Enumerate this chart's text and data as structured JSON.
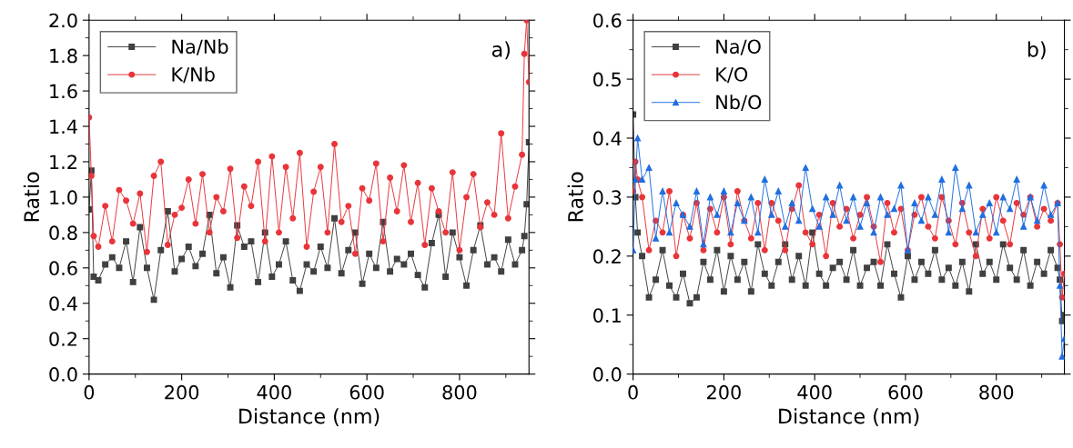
{
  "chart_data": [
    {
      "type": "line",
      "xlabel": "Distance (nm)",
      "ylabel": "Ratio",
      "annotations": [
        "a)"
      ],
      "legend": "top left",
      "grid": false,
      "line_style": "solid",
      "x": [
        0,
        5,
        10,
        20,
        35,
        50,
        65,
        80,
        95,
        110,
        125,
        140,
        155,
        170,
        185,
        200,
        215,
        230,
        245,
        260,
        275,
        290,
        305,
        320,
        335,
        350,
        365,
        380,
        395,
        410,
        425,
        440,
        455,
        470,
        485,
        500,
        515,
        530,
        545,
        560,
        575,
        590,
        605,
        620,
        635,
        650,
        665,
        680,
        695,
        710,
        725,
        740,
        755,
        770,
        785,
        800,
        815,
        830,
        845,
        860,
        875,
        890,
        905,
        920,
        935,
        940,
        945,
        950
      ],
      "xlim": [
        0,
        950
      ],
      "xticks": [
        0,
        200,
        400,
        600,
        800
      ],
      "ylim": [
        0.0,
        2.0
      ],
      "yticks": [
        {
          "value": 0,
          "label": "0.0"
        },
        0.2,
        0.4,
        0.6,
        0.8,
        {
          "value": 1,
          "label": "1.0"
        },
        1.2,
        1.4,
        1.6,
        1.8,
        {
          "value": 2,
          "label": "2.0"
        }
      ],
      "series": [
        {
          "name": "Na/Nb",
          "color": "#404040",
          "marker": "square",
          "values": [
            0.93,
            1.15,
            0.55,
            0.53,
            0.62,
            0.66,
            0.6,
            0.75,
            0.52,
            0.83,
            0.6,
            0.42,
            0.7,
            0.92,
            0.58,
            0.65,
            0.72,
            0.61,
            0.68,
            0.9,
            0.57,
            0.66,
            0.49,
            0.84,
            0.72,
            0.75,
            0.52,
            0.8,
            0.55,
            0.62,
            0.75,
            0.53,
            0.47,
            0.62,
            0.58,
            0.72,
            0.6,
            0.88,
            0.57,
            0.7,
            0.8,
            0.51,
            0.68,
            0.6,
            0.86,
            0.58,
            0.65,
            0.62,
            0.68,
            0.56,
            0.49,
            0.74,
            0.9,
            0.55,
            0.8,
            0.66,
            0.5,
            0.7,
            0.84,
            0.62,
            0.66,
            0.58,
            0.76,
            0.62,
            0.7,
            0.78,
            0.96,
            1.31
          ]
        },
        {
          "name": "K/Nb",
          "color": "#e8353a",
          "marker": "circle",
          "values": [
            1.45,
            1.12,
            0.78,
            0.72,
            0.95,
            0.75,
            1.04,
            0.98,
            0.85,
            1.02,
            0.69,
            1.12,
            1.2,
            0.73,
            0.9,
            0.94,
            1.1,
            0.85,
            1.13,
            0.8,
            1.0,
            0.92,
            1.16,
            0.77,
            1.06,
            0.95,
            1.2,
            0.75,
            1.23,
            0.8,
            1.17,
            0.88,
            1.25,
            0.72,
            1.03,
            1.17,
            0.8,
            1.3,
            0.86,
            0.95,
            0.68,
            1.05,
            0.98,
            1.19,
            0.75,
            1.11,
            0.92,
            1.18,
            0.86,
            1.08,
            0.73,
            1.05,
            0.92,
            0.8,
            1.14,
            0.7,
            1.0,
            1.13,
            0.83,
            0.97,
            0.9,
            1.36,
            0.88,
            1.06,
            1.24,
            1.81,
            2.0,
            1.65
          ]
        }
      ]
    },
    {
      "type": "line",
      "xlabel": "Distance (nm)",
      "ylabel": "Ratio",
      "annotations": [
        "b)"
      ],
      "legend": "top left",
      "grid": false,
      "line_style": "solid",
      "x": [
        0,
        5,
        10,
        20,
        35,
        50,
        65,
        80,
        95,
        110,
        125,
        140,
        155,
        170,
        185,
        200,
        215,
        230,
        245,
        260,
        275,
        290,
        305,
        320,
        335,
        350,
        365,
        380,
        395,
        410,
        425,
        440,
        455,
        470,
        485,
        500,
        515,
        530,
        545,
        560,
        575,
        590,
        605,
        620,
        635,
        650,
        665,
        680,
        695,
        710,
        725,
        740,
        755,
        770,
        785,
        800,
        815,
        830,
        845,
        860,
        875,
        890,
        905,
        920,
        935,
        940,
        945,
        950
      ],
      "xlim": [
        0,
        950
      ],
      "xticks": [
        0,
        200,
        400,
        600,
        800
      ],
      "ylim": [
        0.0,
        0.6
      ],
      "yticks": [
        {
          "value": 0,
          "label": "0.0"
        },
        0.1,
        0.2,
        0.3,
        0.4,
        0.5,
        0.6
      ],
      "series": [
        {
          "name": "Na/O",
          "color": "#404040",
          "marker": "square",
          "values": [
            0.44,
            0.3,
            0.24,
            0.2,
            0.13,
            0.16,
            0.21,
            0.15,
            0.13,
            0.17,
            0.12,
            0.13,
            0.19,
            0.16,
            0.21,
            0.14,
            0.2,
            0.16,
            0.19,
            0.14,
            0.22,
            0.17,
            0.15,
            0.19,
            0.22,
            0.16,
            0.2,
            0.15,
            0.24,
            0.17,
            0.15,
            0.18,
            0.19,
            0.16,
            0.21,
            0.15,
            0.18,
            0.19,
            0.15,
            0.22,
            0.17,
            0.13,
            0.2,
            0.16,
            0.19,
            0.17,
            0.21,
            0.16,
            0.18,
            0.15,
            0.19,
            0.14,
            0.22,
            0.17,
            0.19,
            0.16,
            0.22,
            0.18,
            0.16,
            0.21,
            0.15,
            0.19,
            0.17,
            0.21,
            0.18,
            0.16,
            0.09,
            0.1
          ]
        },
        {
          "name": "K/O",
          "color": "#e8353a",
          "marker": "circle",
          "values": [
            0.31,
            0.36,
            0.33,
            0.3,
            0.21,
            0.26,
            0.24,
            0.31,
            0.2,
            0.27,
            0.23,
            0.29,
            0.21,
            0.28,
            0.24,
            0.3,
            0.22,
            0.31,
            0.26,
            0.23,
            0.29,
            0.21,
            0.29,
            0.26,
            0.21,
            0.28,
            0.32,
            0.24,
            0.22,
            0.27,
            0.2,
            0.29,
            0.25,
            0.28,
            0.23,
            0.27,
            0.3,
            0.25,
            0.19,
            0.29,
            0.24,
            0.28,
            0.21,
            0.27,
            0.3,
            0.25,
            0.23,
            0.3,
            0.26,
            0.22,
            0.29,
            0.24,
            0.2,
            0.28,
            0.23,
            0.3,
            0.26,
            0.22,
            0.29,
            0.27,
            0.3,
            0.25,
            0.28,
            0.26,
            0.29,
            0.22,
            0.13,
            0.17
          ]
        },
        {
          "name": "Nb/O",
          "color": "#1f6fe0",
          "marker": "triangle",
          "values": [
            0.21,
            0.33,
            0.4,
            0.33,
            0.35,
            0.23,
            0.31,
            0.24,
            0.29,
            0.27,
            0.25,
            0.31,
            0.22,
            0.3,
            0.27,
            0.31,
            0.24,
            0.29,
            0.26,
            0.3,
            0.24,
            0.33,
            0.27,
            0.31,
            0.25,
            0.29,
            0.26,
            0.35,
            0.28,
            0.25,
            0.3,
            0.27,
            0.32,
            0.26,
            0.3,
            0.25,
            0.29,
            0.24,
            0.3,
            0.27,
            0.28,
            0.32,
            0.21,
            0.29,
            0.26,
            0.3,
            0.27,
            0.33,
            0.24,
            0.35,
            0.28,
            0.32,
            0.24,
            0.27,
            0.29,
            0.24,
            0.3,
            0.28,
            0.33,
            0.25,
            0.3,
            0.26,
            0.32,
            0.27,
            0.29,
            0.15,
            0.03,
            0.06
          ]
        }
      ]
    }
  ]
}
